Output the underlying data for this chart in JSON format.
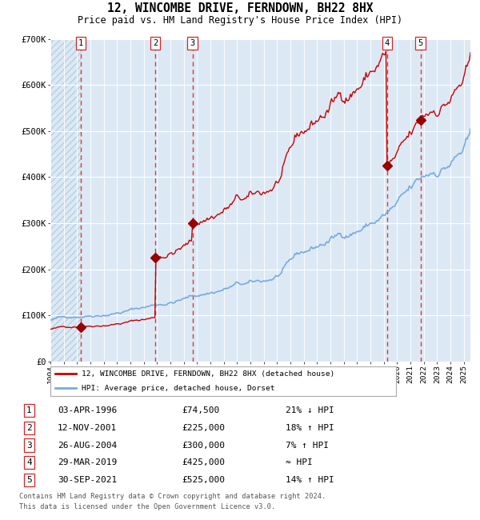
{
  "title1": "12, WINCOMBE DRIVE, FERNDOWN, BH22 8HX",
  "title2": "Price paid vs. HM Land Registry's House Price Index (HPI)",
  "ylim": [
    0,
    700000
  ],
  "yticks": [
    0,
    100000,
    200000,
    300000,
    400000,
    500000,
    600000,
    700000
  ],
  "ytick_labels": [
    "£0",
    "£100K",
    "£200K",
    "£300K",
    "£400K",
    "£500K",
    "£600K",
    "£700K"
  ],
  "xlim_start": 1994.0,
  "xlim_end": 2025.5,
  "bg_color": "#dce9f5",
  "hatch_color": "#b8cfe0",
  "grid_color": "#ffffff",
  "red_line_color": "#cc0000",
  "blue_line_color": "#7aaadd",
  "sale_marker_color": "#990000",
  "dashed_line_color": "#dd2222",
  "purchases": [
    {
      "num": 1,
      "date_label": "03-APR-1996",
      "year": 1996.26,
      "price": 74500
    },
    {
      "num": 2,
      "date_label": "12-NOV-2001",
      "year": 2001.87,
      "price": 225000
    },
    {
      "num": 3,
      "date_label": "26-AUG-2004",
      "year": 2004.65,
      "price": 300000
    },
    {
      "num": 4,
      "date_label": "29-MAR-2019",
      "year": 2019.24,
      "price": 425000
    },
    {
      "num": 5,
      "date_label": "30-SEP-2021",
      "year": 2021.75,
      "price": 525000
    }
  ],
  "legend_red_label": "12, WINCOMBE DRIVE, FERNDOWN, BH22 8HX (detached house)",
  "legend_blue_label": "HPI: Average price, detached house, Dorset",
  "footer1": "Contains HM Land Registry data © Crown copyright and database right 2024.",
  "footer2": "This data is licensed under the Open Government Licence v3.0.",
  "table_rows": [
    [
      "1",
      "03-APR-1996",
      "£74,500",
      "21% ↓ HPI"
    ],
    [
      "2",
      "12-NOV-2001",
      "£225,000",
      "18% ↑ HPI"
    ],
    [
      "3",
      "26-AUG-2004",
      "£300,000",
      "7% ↑ HPI"
    ],
    [
      "4",
      "29-MAR-2019",
      "£425,000",
      "≈ HPI"
    ],
    [
      "5",
      "30-SEP-2021",
      "£525,000",
      "14% ↑ HPI"
    ]
  ]
}
